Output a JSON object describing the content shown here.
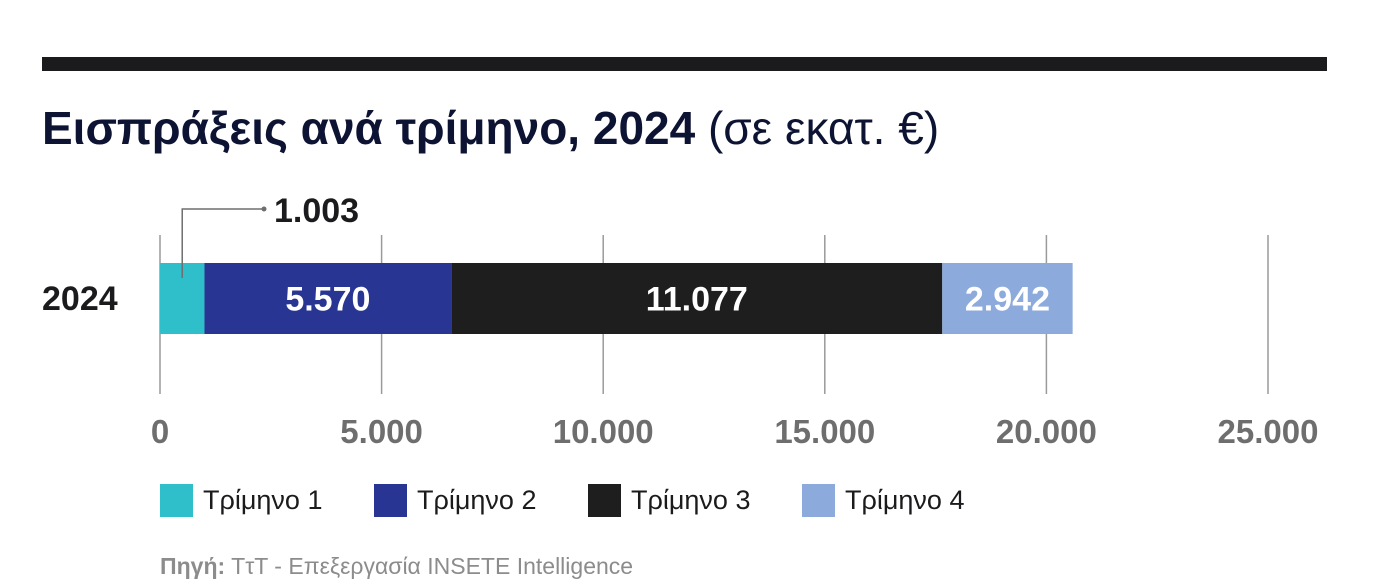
{
  "title": {
    "main": "Εισπράξεις ανά τρίμηνο, 2024",
    "unit": "(σε εκατ. €)"
  },
  "colors": {
    "q1": "#2fbfcb",
    "q2": "#283593",
    "q3": "#1e1e1e",
    "q4": "#8caadb",
    "title": "#0d1333",
    "axis_text": "#6e6e6e"
  },
  "chart_data": {
    "type": "bar",
    "orientation": "horizontal",
    "stacked": true,
    "categories": [
      "2024"
    ],
    "series": [
      {
        "name": "Τρίμηνο 1",
        "values": [
          1003
        ],
        "label": "1.003",
        "color": "#2fbfcb"
      },
      {
        "name": "Τρίμηνο 2",
        "values": [
          5570
        ],
        "label": "5.570",
        "color": "#283593"
      },
      {
        "name": "Τρίμηνο 3",
        "values": [
          11077
        ],
        "label": "11.077",
        "color": "#1e1e1e"
      },
      {
        "name": "Τρίμηνο 4",
        "values": [
          2942
        ],
        "label": "2.942",
        "color": "#8caadb"
      }
    ],
    "xlim": [
      0,
      25000
    ],
    "xticks": [
      0,
      5000,
      10000,
      15000,
      20000,
      25000
    ],
    "xtick_labels": [
      "0",
      "5.000",
      "10.000",
      "15.000",
      "20.000",
      "25.000"
    ],
    "grid": "vertical",
    "legend_position": "bottom"
  },
  "legend": [
    {
      "label": "Τρίμηνο 1",
      "color": "#2fbfcb"
    },
    {
      "label": "Τρίμηνο 2",
      "color": "#283593"
    },
    {
      "label": "Τρίμηνο 3",
      "color": "#1e1e1e"
    },
    {
      "label": "Τρίμηνο 4",
      "color": "#8caadb"
    }
  ],
  "source": {
    "key": "Πηγή:",
    "text": " ΤτΤ - Επεξεργασία INSETE Intelligence"
  }
}
